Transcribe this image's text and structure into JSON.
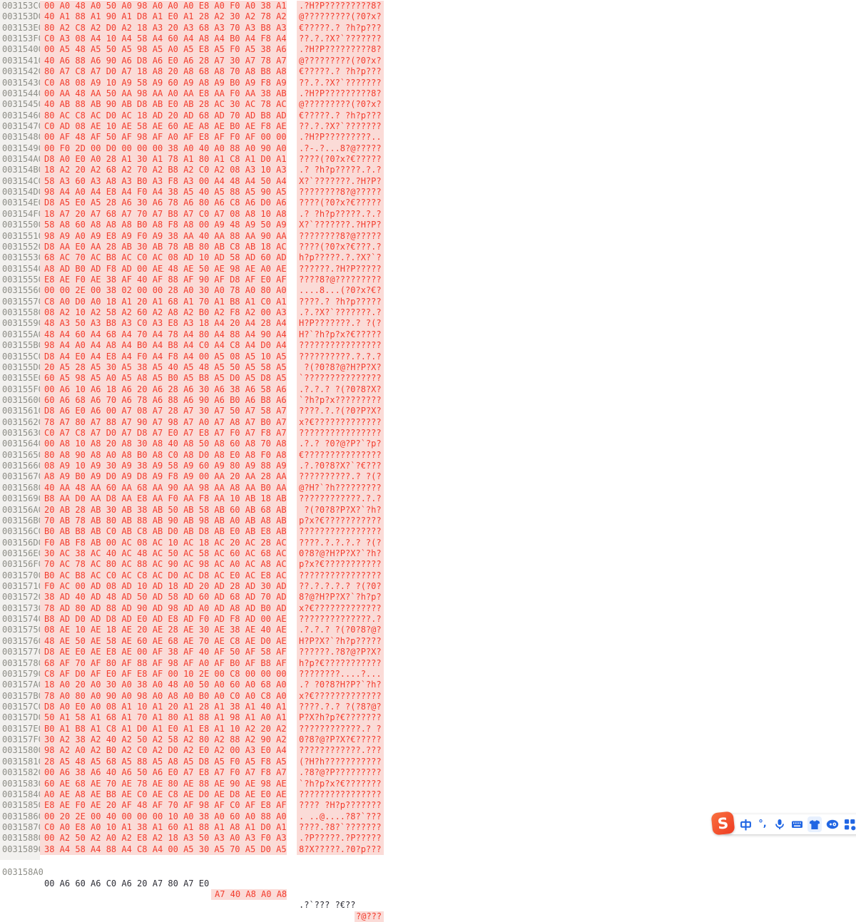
{
  "colors": {
    "modified_bg": "#fbdbd7",
    "modified_text": "#f23c2d",
    "address_text": "#8d8d86",
    "address_strip_bg": "#f2f1ef",
    "plain_text": "#2e2e36",
    "ime_icon_blue": "#2166e3",
    "ime_logo_orange": "#ee3b22"
  },
  "rows": [
    {
      "addr": "003153C0",
      "hex": "00 A0 48 A0 50 A0 98 A0 A0 A0 E8 A0 F0 A0 38 A1",
      "ascii": ".?H?P?????????8?"
    },
    {
      "addr": "003153D0",
      "hex": "40 A1 88 A1 90 A1 D8 A1 E0 A1 28 A2 30 A2 78 A2",
      "ascii": "@?????????(?0?x?"
    },
    {
      "addr": "003153E0",
      "hex": "80 A2 C8 A2 D0 A2 18 A3 20 A3 68 A3 70 A3 B8 A3",
      "ascii": "€?????.? ?h?p???"
    },
    {
      "addr": "003153F0",
      "hex": "C0 A3 08 A4 10 A4 58 A4 60 A4 A8 A4 B0 A4 F8 A4",
      "ascii": "??.?.?X?`???????"
    },
    {
      "addr": "00315400",
      "hex": "00 A5 48 A5 50 A5 98 A5 A0 A5 E8 A5 F0 A5 38 A6",
      "ascii": ".?H?P?????????8?"
    },
    {
      "addr": "00315410",
      "hex": "40 A6 88 A6 90 A6 D8 A6 E0 A6 28 A7 30 A7 78 A7",
      "ascii": "@?????????(?0?x?"
    },
    {
      "addr": "00315420",
      "hex": "80 A7 C8 A7 D0 A7 18 A8 20 A8 68 A8 70 A8 B8 A8",
      "ascii": "€?????.? ?h?p???"
    },
    {
      "addr": "00315430",
      "hex": "C0 A8 08 A9 10 A9 58 A9 60 A9 A8 A9 B0 A9 F8 A9",
      "ascii": "??.?.?X?`???????"
    },
    {
      "addr": "00315440",
      "hex": "00 AA 48 AA 50 AA 98 AA A0 AA E8 AA F0 AA 38 AB",
      "ascii": ".?H?P?????????8?"
    },
    {
      "addr": "00315450",
      "hex": "40 AB 88 AB 90 AB D8 AB E0 AB 28 AC 30 AC 78 AC",
      "ascii": "@?????????(?0?x?"
    },
    {
      "addr": "00315460",
      "hex": "80 AC C8 AC D0 AC 18 AD 20 AD 68 AD 70 AD B8 AD",
      "ascii": "€?????.? ?h?p???"
    },
    {
      "addr": "00315470",
      "hex": "C0 AD 08 AE 10 AE 58 AE 60 AE A8 AE B0 AE F8 AE",
      "ascii": "??.?.?X?`???????"
    },
    {
      "addr": "00315480",
      "hex": "00 AF 48 AF 50 AF 98 AF A0 AF E8 AF F0 AF 00 00",
      "ascii": ".?H?P?????????.."
    },
    {
      "addr": "00315490",
      "hex": "00 F0 2D 00 D0 00 00 00 38 A0 40 A0 88 A0 90 A0",
      "ascii": ".?-.?...8?@?????"
    },
    {
      "addr": "003154A0",
      "hex": "D8 A0 E0 A0 28 A1 30 A1 78 A1 80 A1 C8 A1 D0 A1",
      "ascii": "????(?0?x?€?????"
    },
    {
      "addr": "003154B0",
      "hex": "18 A2 20 A2 68 A2 70 A2 B8 A2 C0 A2 08 A3 10 A3",
      "ascii": ".? ?h?p?????.?.?"
    },
    {
      "addr": "003154C0",
      "hex": "58 A3 60 A3 A8 A3 B0 A3 F8 A3 00 A4 48 A4 50 A4",
      "ascii": "X?`???????.?H?P?"
    },
    {
      "addr": "003154D0",
      "hex": "98 A4 A0 A4 E8 A4 F0 A4 38 A5 40 A5 88 A5 90 A5",
      "ascii": "????????8?@?????"
    },
    {
      "addr": "003154E0",
      "hex": "D8 A5 E0 A5 28 A6 30 A6 78 A6 80 A6 C8 A6 D0 A6",
      "ascii": "????(?0?x?€?????"
    },
    {
      "addr": "003154F0",
      "hex": "18 A7 20 A7 68 A7 70 A7 B8 A7 C0 A7 08 A8 10 A8",
      "ascii": ".? ?h?p?????.?.?"
    },
    {
      "addr": "00315500",
      "hex": "58 A8 60 A8 A8 A8 B0 A8 F8 A8 00 A9 48 A9 50 A9",
      "ascii": "X?`???????.?H?P?"
    },
    {
      "addr": "00315510",
      "hex": "98 A9 A0 A9 E8 A9 F0 A9 38 AA 40 AA 88 AA 90 AA",
      "ascii": "????????8?@?????"
    },
    {
      "addr": "00315520",
      "hex": "D8 AA E0 AA 28 AB 30 AB 78 AB 80 AB C8 AB 18 AC",
      "ascii": "????(?0?x?€???.?"
    },
    {
      "addr": "00315530",
      "hex": "68 AC 70 AC B8 AC C0 AC 08 AD 10 AD 58 AD 60 AD",
      "ascii": "h?p?????.?.?X?`?"
    },
    {
      "addr": "00315540",
      "hex": "A8 AD B0 AD F8 AD 00 AE 48 AE 50 AE 98 AE A0 AE",
      "ascii": "??????.?H?P?????"
    },
    {
      "addr": "00315550",
      "hex": "E8 AE F0 AE 38 AF 40 AF 88 AF 90 AF D8 AF E0 AF",
      "ascii": "????8?@?????????"
    },
    {
      "addr": "00315560",
      "hex": "00 00 2E 00 38 02 00 00 28 A0 30 A0 78 A0 80 A0",
      "ascii": "....8...(?0?x?€?"
    },
    {
      "addr": "00315570",
      "hex": "C8 A0 D0 A0 18 A1 20 A1 68 A1 70 A1 B8 A1 C0 A1",
      "ascii": "????.? ?h?p?????"
    },
    {
      "addr": "00315580",
      "hex": "08 A2 10 A2 58 A2 60 A2 A8 A2 B0 A2 F8 A2 00 A3",
      "ascii": ".?.?X?`???????.?"
    },
    {
      "addr": "00315590",
      "hex": "48 A3 50 A3 B8 A3 C0 A3 E8 A3 18 A4 20 A4 28 A4",
      "ascii": "H?P???????.? ?(?"
    },
    {
      "addr": "003155A0",
      "hex": "48 A4 60 A4 68 A4 70 A4 78 A4 80 A4 88 A4 90 A4",
      "ascii": "H?`?h?p?x?€?????"
    },
    {
      "addr": "003155B0",
      "hex": "98 A4 A0 A4 A8 A4 B0 A4 B8 A4 C0 A4 C8 A4 D0 A4",
      "ascii": "????????????????"
    },
    {
      "addr": "003155C0",
      "hex": "D8 A4 E0 A4 E8 A4 F0 A4 F8 A4 00 A5 08 A5 10 A5",
      "ascii": "??????????.?.?.?"
    },
    {
      "addr": "003155D0",
      "hex": "20 A5 28 A5 30 A5 38 A5 40 A5 48 A5 50 A5 58 A5",
      "ascii": " ?(?0?8?@?H?P?X?"
    },
    {
      "addr": "003155E0",
      "hex": "60 A5 98 A5 A0 A5 A8 A5 B0 A5 B8 A5 D0 A5 D8 A5",
      "ascii": "`???????????????"
    },
    {
      "addr": "003155F0",
      "hex": "00 A6 10 A6 18 A6 20 A6 28 A6 30 A6 38 A6 58 A6",
      "ascii": ".?.?.? ?(?0?8?X?"
    },
    {
      "addr": "00315600",
      "hex": "60 A6 68 A6 70 A6 78 A6 88 A6 90 A6 B0 A6 B8 A6",
      "ascii": "`?h?p?x?????????"
    },
    {
      "addr": "00315610",
      "hex": "D8 A6 E0 A6 00 A7 08 A7 28 A7 30 A7 50 A7 58 A7",
      "ascii": "????.?.?(?0?P?X?"
    },
    {
      "addr": "00315620",
      "hex": "78 A7 80 A7 88 A7 90 A7 98 A7 A0 A7 A8 A7 B0 A7",
      "ascii": "x?€?????????????"
    },
    {
      "addr": "00315630",
      "hex": "C0 A7 C8 A7 D0 A7 D8 A7 E0 A7 E8 A7 F0 A7 F8 A7",
      "ascii": "????????????????"
    },
    {
      "addr": "00315640",
      "hex": "00 A8 10 A8 20 A8 30 A8 40 A8 50 A8 60 A8 70 A8",
      "ascii": ".?.? ?0?@?P?`?p?"
    },
    {
      "addr": "00315650",
      "hex": "80 A8 90 A8 A0 A8 B0 A8 C0 A8 D0 A8 E0 A8 F0 A8",
      "ascii": "€???????????????"
    },
    {
      "addr": "00315660",
      "hex": "08 A9 10 A9 30 A9 38 A9 58 A9 60 A9 80 A9 88 A9",
      "ascii": ".?.?0?8?X?`?€???"
    },
    {
      "addr": "00315670",
      "hex": "A8 A9 B0 A9 D0 A9 D8 A9 F8 A9 00 AA 20 AA 28 AA",
      "ascii": "??????????.? ?(?"
    },
    {
      "addr": "00315680",
      "hex": "40 AA 48 AA 60 AA 68 AA 90 AA 98 AA A8 AA B0 AA",
      "ascii": "@?H?`?h?????????"
    },
    {
      "addr": "00315690",
      "hex": "B8 AA D0 AA D8 AA E8 AA F0 AA F8 AA 10 AB 18 AB",
      "ascii": "????????????.?.?"
    },
    {
      "addr": "003156A0",
      "hex": "20 AB 28 AB 30 AB 38 AB 50 AB 58 AB 60 AB 68 AB",
      "ascii": " ?(?0?8?P?X?`?h?"
    },
    {
      "addr": "003156B0",
      "hex": "70 AB 78 AB 80 AB 88 AB 90 AB 98 AB A0 AB A8 AB",
      "ascii": "p?x?€???????????"
    },
    {
      "addr": "003156C0",
      "hex": "B0 AB B8 AB C0 AB C8 AB D0 AB D8 AB E0 AB E8 AB",
      "ascii": "????????????????"
    },
    {
      "addr": "003156D0",
      "hex": "F0 AB F8 AB 00 AC 08 AC 10 AC 18 AC 20 AC 28 AC",
      "ascii": "????.?.?.?.? ?(?"
    },
    {
      "addr": "003156E0",
      "hex": "30 AC 38 AC 40 AC 48 AC 50 AC 58 AC 60 AC 68 AC",
      "ascii": "0?8?@?H?P?X?`?h?"
    },
    {
      "addr": "003156F0",
      "hex": "70 AC 78 AC 80 AC 88 AC 90 AC 98 AC A0 AC A8 AC",
      "ascii": "p?x?€???????????"
    },
    {
      "addr": "00315700",
      "hex": "B0 AC B8 AC C0 AC C8 AC D0 AC D8 AC E0 AC E8 AC",
      "ascii": "????????????????"
    },
    {
      "addr": "00315710",
      "hex": "F0 AC 00 AD 08 AD 10 AD 18 AD 20 AD 28 AD 30 AD",
      "ascii": "??.?.?.?.? ?(?0?"
    },
    {
      "addr": "00315720",
      "hex": "38 AD 40 AD 48 AD 50 AD 58 AD 60 AD 68 AD 70 AD",
      "ascii": "8?@?H?P?X?`?h?p?"
    },
    {
      "addr": "00315730",
      "hex": "78 AD 80 AD 88 AD 90 AD 98 AD A0 AD A8 AD B0 AD",
      "ascii": "x?€?????????????"
    },
    {
      "addr": "00315740",
      "hex": "B8 AD D0 AD D8 AD E0 AD E8 AD F0 AD F8 AD 00 AE",
      "ascii": "??????????????.?"
    },
    {
      "addr": "00315750",
      "hex": "08 AE 10 AE 18 AE 20 AE 28 AE 30 AE 38 AE 40 AE",
      "ascii": ".?.?.? ?(?0?8?@?"
    },
    {
      "addr": "00315760",
      "hex": "48 AE 50 AE 58 AE 60 AE 68 AE 70 AE C8 AE D0 AE",
      "ascii": "H?P?X?`?h?p?????"
    },
    {
      "addr": "00315770",
      "hex": "D8 AE E0 AE E8 AE 00 AF 38 AF 40 AF 50 AF 58 AF",
      "ascii": "??????.?8?@?P?X?"
    },
    {
      "addr": "00315780",
      "hex": "68 AF 70 AF 80 AF 88 AF 98 AF A0 AF B0 AF B8 AF",
      "ascii": "h?p?€???????????"
    },
    {
      "addr": "00315790",
      "hex": "C8 AF D0 AF E0 AF E8 AF 00 10 2E 00 C8 00 00 00",
      "ascii": "????????....?..."
    },
    {
      "addr": "003157A0",
      "hex": "18 A0 20 A0 30 A0 38 A0 48 A0 50 A0 60 A0 68 A0",
      "ascii": ".? ?0?8?H?P?`?h?"
    },
    {
      "addr": "003157B0",
      "hex": "78 A0 80 A0 90 A0 98 A0 A8 A0 B0 A0 C0 A0 C8 A0",
      "ascii": "x?€?????????????"
    },
    {
      "addr": "003157C0",
      "hex": "D8 A0 E0 A0 08 A1 10 A1 20 A1 28 A1 38 A1 40 A1",
      "ascii": "????.?.? ?(?8?@?"
    },
    {
      "addr": "003157D0",
      "hex": "50 A1 58 A1 68 A1 70 A1 80 A1 88 A1 98 A1 A0 A1",
      "ascii": "P?X?h?p?€???????"
    },
    {
      "addr": "003157E0",
      "hex": "B0 A1 B8 A1 C8 A1 D0 A1 E0 A1 E8 A1 10 A2 20 A2",
      "ascii": "????????????.? ?"
    },
    {
      "addr": "003157F0",
      "hex": "30 A2 38 A2 40 A2 50 A2 58 A2 80 A2 88 A2 90 A2",
      "ascii": "0?8?@?P?X?€?????"
    },
    {
      "addr": "00315800",
      "hex": "98 A2 A0 A2 B0 A2 C0 A2 D0 A2 E0 A2 00 A3 E0 A4",
      "ascii": "????????????.???"
    },
    {
      "addr": "00315810",
      "hex": "28 A5 48 A5 68 A5 88 A5 A8 A5 D8 A5 F0 A5 F8 A5",
      "ascii": "(?H?h???????????"
    },
    {
      "addr": "00315820",
      "hex": "00 A6 38 A6 40 A6 50 A6 E0 A7 E8 A7 F0 A7 F8 A7",
      "ascii": ".?8?@?P?????????"
    },
    {
      "addr": "00315830",
      "hex": "60 AE 68 AE 70 AE 78 AE 80 AE 88 AE 90 AE 98 AE",
      "ascii": "`?h?p?x?€???????"
    },
    {
      "addr": "00315840",
      "hex": "A0 AE A8 AE B8 AE C0 AE C8 AE D0 AE D8 AE E0 AE",
      "ascii": "????????????????"
    },
    {
      "addr": "00315850",
      "hex": "E8 AE F0 AE 20 AF 48 AF 70 AF 98 AF C0 AF E8 AF",
      "ascii": "???? ?H?p???????"
    },
    {
      "addr": "00315860",
      "hex": "00 20 2E 00 40 00 00 00 10 A0 38 A0 60 A0 88 A0",
      "ascii": ". ..@....?8?`???"
    },
    {
      "addr": "00315870",
      "hex": "C0 A0 E8 A0 10 A1 38 A1 60 A1 88 A1 A8 A1 D0 A1",
      "ascii": "????.?8?`???????"
    },
    {
      "addr": "00315880",
      "hex": "00 A2 50 A2 A0 A2 E8 A2 18 A3 50 A3 A0 A3 F0 A3",
      "ascii": ".?P?????.?P?????"
    },
    {
      "addr": "00315890",
      "hex": "38 A4 58 A4 88 A4 C8 A4 00 A5 30 A5 70 A5 D0 A5",
      "ascii": "8?X?????.?0?p???"
    }
  ],
  "partial_row": {
    "addr": "003158A0",
    "hex_plain": "00 A6 60 A6 C0 A6 20 A7 80 A7 E0",
    "hex_modified": "A7 40 A8 A0 A8",
    "ascii_plain": ".?`??? ?€??",
    "ascii_modified": "?@???"
  },
  "ime": {
    "logo": "S",
    "icons": [
      {
        "name": "chinese-english-toggle",
        "glyph": "中"
      },
      {
        "name": "punctuation-mode",
        "glyph": "°,"
      },
      {
        "name": "voice-input"
      },
      {
        "name": "soft-keyboard"
      },
      {
        "name": "skin-theme",
        "highlighted": true
      },
      {
        "name": "emoji-input"
      },
      {
        "name": "toolbox"
      },
      {
        "name": "partial-icon"
      }
    ]
  }
}
